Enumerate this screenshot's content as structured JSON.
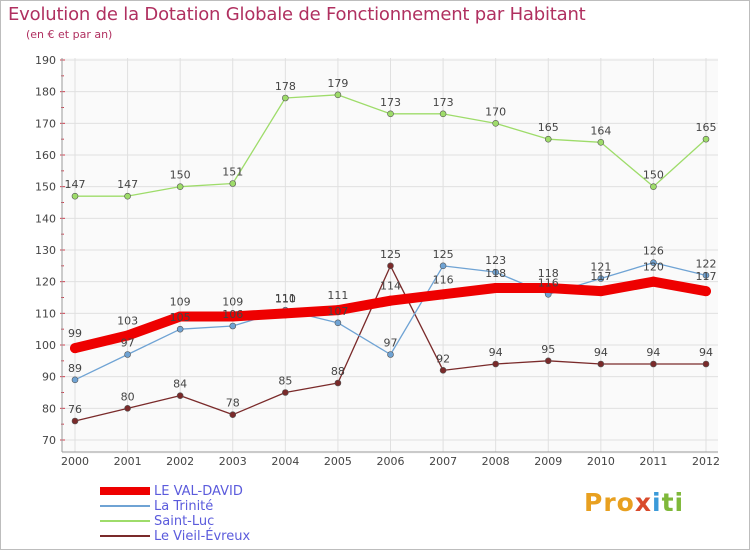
{
  "title": "Evolution de la Dotation Globale de Fonctionnement par Habitant",
  "subtitle": "(en € et par an)",
  "logo": {
    "letters": [
      "P",
      "r",
      "o",
      "x",
      "i",
      "t",
      "i"
    ],
    "colors": [
      "#e8a020",
      "#e8a020",
      "#e8a020",
      "#d94a2b",
      "#3a9ad9",
      "#7fb83a",
      "#7fb83a"
    ]
  },
  "chart_data": {
    "type": "line",
    "title": "Evolution de la Dotation Globale de Fonctionnement par Habitant",
    "subtitle": "(en € et par an)",
    "xlabel": "",
    "ylabel": "",
    "x": [
      "2000",
      "2001",
      "2002",
      "2003",
      "2004",
      "2005",
      "2006",
      "2007",
      "2008",
      "2009",
      "2010",
      "2011",
      "2012"
    ],
    "ylim": [
      70,
      190
    ],
    "yticks": [
      70,
      80,
      90,
      100,
      110,
      120,
      130,
      140,
      150,
      160,
      170,
      180,
      190
    ],
    "grid": true,
    "legend_position": "bottom-left",
    "series": [
      {
        "name": "LE VAL-DAVID",
        "color": "#ee0000",
        "values": [
          99,
          103,
          109,
          109,
          110,
          111,
          114,
          116,
          118,
          118,
          117,
          120,
          117
        ]
      },
      {
        "name": "La Trinité",
        "color": "#6fa3d4",
        "values": [
          89,
          97,
          105,
          106,
          111,
          107,
          97,
          125,
          123,
          116,
          121,
          126,
          122
        ]
      },
      {
        "name": "Saint-Luc",
        "color": "#9edc6a",
        "values": [
          147,
          147,
          150,
          151,
          178,
          179,
          173,
          173,
          170,
          165,
          164,
          150,
          165
        ]
      },
      {
        "name": "Le Vieil-Évreux",
        "color": "#7a2a2a",
        "values": [
          76,
          80,
          84,
          78,
          85,
          88,
          125,
          92,
          94,
          95,
          94,
          94,
          94
        ]
      }
    ]
  }
}
